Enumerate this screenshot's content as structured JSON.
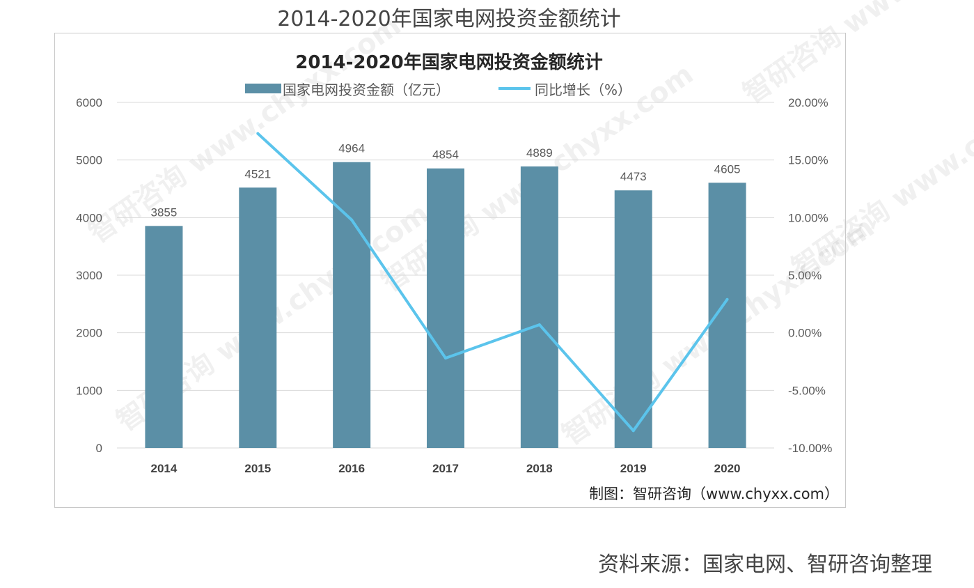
{
  "page": {
    "outer_title": "2014-2020年国家电网投资金额统计",
    "source": "资料来源：国家电网、智研咨询整理",
    "credit": "制图：智研咨询（www.chyxx.com）",
    "watermark": "智研咨询 www.chyxx.com"
  },
  "chart_data": {
    "type": "bar+line",
    "title": "2014-2020年国家电网投资金额统计",
    "categories": [
      "2014",
      "2015",
      "2016",
      "2017",
      "2018",
      "2019",
      "2020"
    ],
    "series": [
      {
        "name": "国家电网投资金额（亿元）",
        "type": "bar",
        "axis": "left",
        "color": "#5b8fa6",
        "values": [
          3855,
          4521,
          4964,
          4854,
          4889,
          4473,
          4605
        ],
        "labels": [
          "3855",
          "4521",
          "4964",
          "4854",
          "4889",
          "4473",
          "4605"
        ]
      },
      {
        "name": "同比增长（%）",
        "type": "line",
        "axis": "right",
        "color": "#5bc4ec",
        "values": [
          null,
          17.3,
          9.8,
          -2.2,
          0.7,
          -8.5,
          2.9
        ]
      }
    ],
    "left_axis": {
      "ylim": [
        0,
        6000
      ],
      "ticks": [
        "0",
        "1000",
        "2000",
        "3000",
        "4000",
        "5000",
        "6000"
      ]
    },
    "right_axis": {
      "ylim": [
        -10,
        20
      ],
      "ticks": [
        "-10.00%",
        "-5.00%",
        "0.00%",
        "5.00%",
        "10.00%",
        "15.00%",
        "20.00%"
      ]
    },
    "grid": true,
    "legend": "top"
  }
}
